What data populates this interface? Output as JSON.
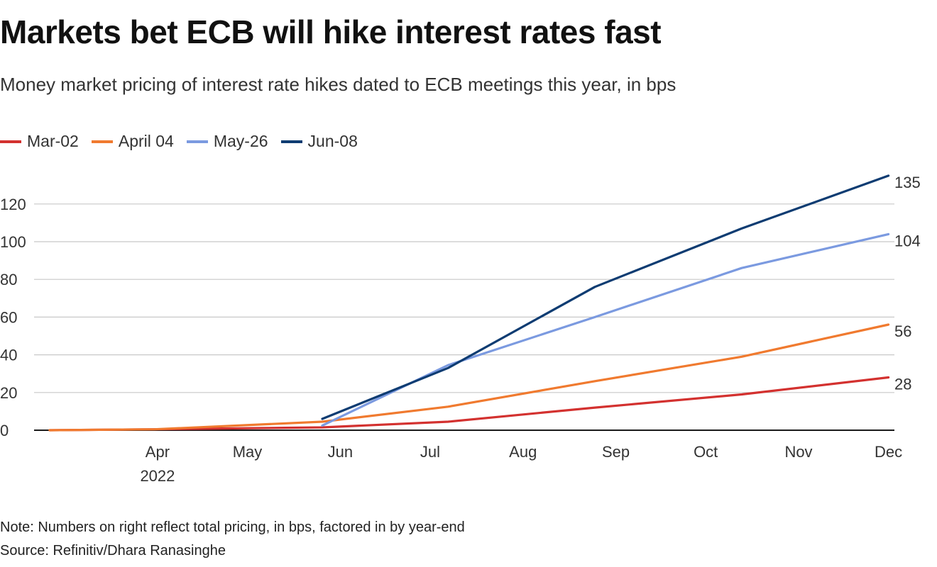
{
  "chart_data": {
    "type": "line",
    "title": "Markets bet ECB will hike interest rates fast",
    "subtitle": "Money market pricing of interest rate hikes dated to ECB meetings this year, in bps",
    "x_ticks": [
      "Apr",
      "May",
      "Jun",
      "Jul",
      "Aug",
      "Sep",
      "Oct",
      "Nov",
      "Dec"
    ],
    "x_year_label": "2022",
    "y_ticks": [
      0,
      20,
      40,
      60,
      80,
      100,
      120
    ],
    "ylim": [
      0,
      135
    ],
    "grid": true,
    "legend_position": "top-left",
    "series": [
      {
        "name": "Mar-02",
        "color": "#d3312f",
        "points": [
          {
            "x": "2022-03-10",
            "y": 0
          },
          {
            "x": "2022-04-14",
            "y": 0.5
          },
          {
            "x": "2022-06-09",
            "y": 1.5
          },
          {
            "x": "2022-07-21",
            "y": 4.5
          },
          {
            "x": "2022-09-08",
            "y": 12
          },
          {
            "x": "2022-10-27",
            "y": 19
          },
          {
            "x": "2022-12-15",
            "y": 28
          }
        ],
        "end_label": "28"
      },
      {
        "name": "April 04",
        "color": "#f07a2f",
        "points": [
          {
            "x": "2022-03-10",
            "y": 0
          },
          {
            "x": "2022-04-14",
            "y": 0.5
          },
          {
            "x": "2022-06-09",
            "y": 4.5
          },
          {
            "x": "2022-07-21",
            "y": 12.5
          },
          {
            "x": "2022-09-08",
            "y": 26
          },
          {
            "x": "2022-10-27",
            "y": 39
          },
          {
            "x": "2022-12-15",
            "y": 56
          }
        ],
        "end_label": "56"
      },
      {
        "name": "May-26",
        "color": "#7b9ae0",
        "points": [
          {
            "x": "2022-06-09",
            "y": 2.5
          },
          {
            "x": "2022-07-21",
            "y": 34.5
          },
          {
            "x": "2022-09-08",
            "y": 60
          },
          {
            "x": "2022-10-27",
            "y": 86
          },
          {
            "x": "2022-12-15",
            "y": 104
          }
        ],
        "end_label": "104"
      },
      {
        "name": "Jun-08",
        "color": "#0e3c72",
        "points": [
          {
            "x": "2022-06-09",
            "y": 6
          },
          {
            "x": "2022-07-21",
            "y": 33
          },
          {
            "x": "2022-09-08",
            "y": 76
          },
          {
            "x": "2022-10-27",
            "y": 107
          },
          {
            "x": "2022-12-15",
            "y": 135
          }
        ],
        "end_label": "135"
      }
    ],
    "note": "Note: Numbers on right reflect total pricing, in bps, factored in by year-end",
    "source": "Source: Refinitiv/Dhara Ranasinghe"
  }
}
